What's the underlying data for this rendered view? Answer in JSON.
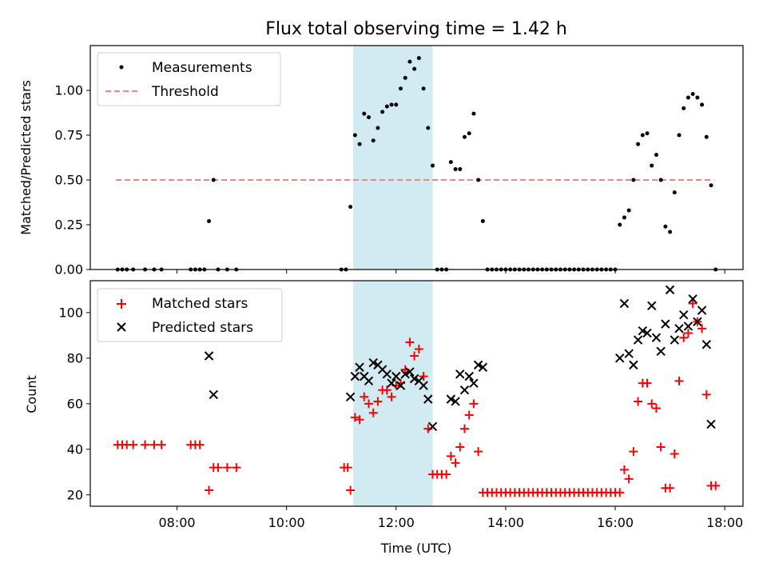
{
  "chart_data": [
    {
      "type": "scatter",
      "title": "Flux total observing time = 1.42 h",
      "ylabel": "Matched/Predicted stars",
      "xlabel": "",
      "xlim": [
        "06:25",
        "18:20"
      ],
      "ylim": [
        0,
        1.25
      ],
      "yticks": [
        "0.00",
        "0.25",
        "0.50",
        "0.75",
        "1.00"
      ],
      "legend_position": "upper-left",
      "shaded_region": {
        "x": [
          "11:13",
          "12:40"
        ],
        "color": "#add8e6"
      },
      "threshold": {
        "name": "Threshold",
        "y": 0.5,
        "x": [
          "06:53",
          "17:48"
        ],
        "color": "#ff7f7f"
      },
      "series": [
        {
          "name": "Measurements",
          "color": "#000000",
          "marker": "dot",
          "points": [
            [
              "06:55",
              0
            ],
            [
              "07:00",
              0
            ],
            [
              "07:05",
              0
            ],
            [
              "07:12",
              0
            ],
            [
              "07:25",
              0
            ],
            [
              "07:35",
              0
            ],
            [
              "07:43",
              0
            ],
            [
              "08:15",
              0
            ],
            [
              "08:20",
              0
            ],
            [
              "08:25",
              0
            ],
            [
              "08:30",
              0
            ],
            [
              "08:35",
              0.27
            ],
            [
              "08:40",
              0.5
            ],
            [
              "08:45",
              0
            ],
            [
              "08:55",
              0
            ],
            [
              "09:05",
              0
            ],
            [
              "11:00",
              0
            ],
            [
              "11:05",
              0
            ],
            [
              "11:10",
              0.35
            ],
            [
              "11:15",
              0.75
            ],
            [
              "11:20",
              0.7
            ],
            [
              "11:25",
              0.87
            ],
            [
              "11:30",
              0.85
            ],
            [
              "11:35",
              0.72
            ],
            [
              "11:40",
              0.79
            ],
            [
              "11:45",
              0.88
            ],
            [
              "11:50",
              0.91
            ],
            [
              "11:55",
              0.92
            ],
            [
              "12:00",
              0.92
            ],
            [
              "12:05",
              1.01
            ],
            [
              "12:10",
              1.07
            ],
            [
              "12:15",
              1.16
            ],
            [
              "12:20",
              1.12
            ],
            [
              "12:25",
              1.18
            ],
            [
              "12:30",
              1.01
            ],
            [
              "12:35",
              0.79
            ],
            [
              "12:40",
              0.58
            ],
            [
              "12:45",
              0
            ],
            [
              "12:50",
              0
            ],
            [
              "12:55",
              0
            ],
            [
              "13:00",
              0.6
            ],
            [
              "13:05",
              0.56
            ],
            [
              "13:10",
              0.56
            ],
            [
              "13:15",
              0.74
            ],
            [
              "13:20",
              0.76
            ],
            [
              "13:25",
              0.87
            ],
            [
              "13:30",
              0.5
            ],
            [
              "13:35",
              0.27
            ],
            [
              "13:40",
              0
            ],
            [
              "13:45",
              0
            ],
            [
              "13:50",
              0
            ],
            [
              "13:55",
              0
            ],
            [
              "14:00",
              0
            ],
            [
              "14:05",
              0
            ],
            [
              "14:10",
              0
            ],
            [
              "14:15",
              0
            ],
            [
              "14:20",
              0
            ],
            [
              "14:25",
              0
            ],
            [
              "14:30",
              0
            ],
            [
              "14:35",
              0
            ],
            [
              "14:40",
              0
            ],
            [
              "14:45",
              0
            ],
            [
              "14:50",
              0
            ],
            [
              "14:55",
              0
            ],
            [
              "15:00",
              0
            ],
            [
              "15:05",
              0
            ],
            [
              "15:10",
              0
            ],
            [
              "15:15",
              0
            ],
            [
              "15:20",
              0
            ],
            [
              "15:25",
              0
            ],
            [
              "15:30",
              0
            ],
            [
              "15:35",
              0
            ],
            [
              "15:40",
              0
            ],
            [
              "15:45",
              0
            ],
            [
              "15:50",
              0
            ],
            [
              "15:55",
              0
            ],
            [
              "16:00",
              0
            ],
            [
              "16:05",
              0.25
            ],
            [
              "16:10",
              0.29
            ],
            [
              "16:15",
              0.33
            ],
            [
              "16:20",
              0.5
            ],
            [
              "16:25",
              0.7
            ],
            [
              "16:30",
              0.75
            ],
            [
              "16:35",
              0.76
            ],
            [
              "16:40",
              0.58
            ],
            [
              "16:45",
              0.64
            ],
            [
              "16:50",
              0.5
            ],
            [
              "16:55",
              0.24
            ],
            [
              "17:00",
              0.21
            ],
            [
              "17:05",
              0.43
            ],
            [
              "17:10",
              0.75
            ],
            [
              "17:15",
              0.9
            ],
            [
              "17:20",
              0.96
            ],
            [
              "17:25",
              0.98
            ],
            [
              "17:30",
              0.96
            ],
            [
              "17:35",
              0.92
            ],
            [
              "17:40",
              0.74
            ],
            [
              "17:45",
              0.47
            ],
            [
              "17:50",
              0
            ]
          ]
        }
      ]
    },
    {
      "type": "scatter",
      "title": "",
      "ylabel": "Count",
      "xlabel": "Time (UTC)",
      "xlim": [
        "06:25",
        "18:20"
      ],
      "ylim": [
        15,
        114
      ],
      "xticks": [
        "08:00",
        "10:00",
        "12:00",
        "14:00",
        "16:00",
        "18:00"
      ],
      "yticks": [
        "20",
        "40",
        "60",
        "80",
        "100"
      ],
      "legend_position": "upper-left",
      "shaded_region": {
        "x": [
          "11:13",
          "12:40"
        ],
        "color": "#add8e6"
      },
      "series": [
        {
          "name": "Matched stars",
          "color": "#ff0000",
          "marker": "plus",
          "points": [
            [
              "06:55",
              42
            ],
            [
              "07:00",
              42
            ],
            [
              "07:05",
              42
            ],
            [
              "07:12",
              42
            ],
            [
              "07:25",
              42
            ],
            [
              "07:35",
              42
            ],
            [
              "07:43",
              42
            ],
            [
              "08:15",
              42
            ],
            [
              "08:20",
              42
            ],
            [
              "08:25",
              42
            ],
            [
              "08:35",
              22
            ],
            [
              "08:40",
              32
            ],
            [
              "08:45",
              32
            ],
            [
              "08:55",
              32
            ],
            [
              "09:05",
              32
            ],
            [
              "11:03",
              32
            ],
            [
              "11:07",
              32
            ],
            [
              "11:10",
              22
            ],
            [
              "11:15",
              54
            ],
            [
              "11:20",
              53
            ],
            [
              "11:25",
              63
            ],
            [
              "11:30",
              60
            ],
            [
              "11:35",
              56
            ],
            [
              "11:40",
              61
            ],
            [
              "11:45",
              66
            ],
            [
              "11:50",
              66
            ],
            [
              "11:55",
              63
            ],
            [
              "12:00",
              68
            ],
            [
              "12:05",
              69
            ],
            [
              "12:10",
              75
            ],
            [
              "12:15",
              87
            ],
            [
              "12:20",
              81
            ],
            [
              "12:25",
              84
            ],
            [
              "12:30",
              72
            ],
            [
              "12:35",
              49
            ],
            [
              "12:40",
              29
            ],
            [
              "12:45",
              29
            ],
            [
              "12:50",
              29
            ],
            [
              "12:55",
              29
            ],
            [
              "13:00",
              37
            ],
            [
              "13:05",
              34
            ],
            [
              "13:10",
              41
            ],
            [
              "13:15",
              49
            ],
            [
              "13:20",
              55
            ],
            [
              "13:25",
              60
            ],
            [
              "13:30",
              39
            ],
            [
              "13:35",
              21
            ],
            [
              "13:40",
              21
            ],
            [
              "13:45",
              21
            ],
            [
              "13:50",
              21
            ],
            [
              "13:55",
              21
            ],
            [
              "14:00",
              21
            ],
            [
              "14:05",
              21
            ],
            [
              "14:10",
              21
            ],
            [
              "14:15",
              21
            ],
            [
              "14:20",
              21
            ],
            [
              "14:25",
              21
            ],
            [
              "14:30",
              21
            ],
            [
              "14:35",
              21
            ],
            [
              "14:40",
              21
            ],
            [
              "14:45",
              21
            ],
            [
              "14:50",
              21
            ],
            [
              "14:55",
              21
            ],
            [
              "15:00",
              21
            ],
            [
              "15:05",
              21
            ],
            [
              "15:10",
              21
            ],
            [
              "15:15",
              21
            ],
            [
              "15:20",
              21
            ],
            [
              "15:25",
              21
            ],
            [
              "15:30",
              21
            ],
            [
              "15:35",
              21
            ],
            [
              "15:40",
              21
            ],
            [
              "15:45",
              21
            ],
            [
              "15:50",
              21
            ],
            [
              "15:55",
              21
            ],
            [
              "16:00",
              21
            ],
            [
              "16:05",
              21
            ],
            [
              "16:10",
              31
            ],
            [
              "16:15",
              27
            ],
            [
              "16:20",
              39
            ],
            [
              "16:25",
              61
            ],
            [
              "16:30",
              69
            ],
            [
              "16:35",
              69
            ],
            [
              "16:40",
              60
            ],
            [
              "16:45",
              58
            ],
            [
              "16:50",
              41
            ],
            [
              "16:55",
              23
            ],
            [
              "17:00",
              23
            ],
            [
              "17:05",
              38
            ],
            [
              "17:10",
              70
            ],
            [
              "17:15",
              89
            ],
            [
              "17:20",
              91
            ],
            [
              "17:25",
              104
            ],
            [
              "17:30",
              96
            ],
            [
              "17:35",
              93
            ],
            [
              "17:40",
              64
            ],
            [
              "17:45",
              24
            ],
            [
              "17:50",
              24
            ]
          ]
        },
        {
          "name": "Predicted stars",
          "color": "#000000",
          "marker": "x",
          "points": [
            [
              "08:35",
              81
            ],
            [
              "08:40",
              64
            ],
            [
              "11:10",
              63
            ],
            [
              "11:15",
              72
            ],
            [
              "11:20",
              76
            ],
            [
              "11:25",
              72
            ],
            [
              "11:30",
              70
            ],
            [
              "11:35",
              78
            ],
            [
              "11:40",
              77
            ],
            [
              "11:45",
              75
            ],
            [
              "11:50",
              73
            ],
            [
              "11:55",
              69
            ],
            [
              "12:00",
              72
            ],
            [
              "12:05",
              68
            ],
            [
              "12:10",
              73
            ],
            [
              "12:15",
              74
            ],
            [
              "12:20",
              71
            ],
            [
              "12:25",
              70
            ],
            [
              "12:30",
              68
            ],
            [
              "12:35",
              62
            ],
            [
              "12:40",
              50
            ],
            [
              "13:00",
              62
            ],
            [
              "13:05",
              61
            ],
            [
              "13:10",
              73
            ],
            [
              "13:15",
              66
            ],
            [
              "13:20",
              72
            ],
            [
              "13:25",
              69
            ],
            [
              "13:30",
              77
            ],
            [
              "13:35",
              76
            ],
            [
              "16:05",
              80
            ],
            [
              "16:10",
              104
            ],
            [
              "16:15",
              82
            ],
            [
              "16:20",
              77
            ],
            [
              "16:25",
              88
            ],
            [
              "16:30",
              92
            ],
            [
              "16:35",
              91
            ],
            [
              "16:40",
              103
            ],
            [
              "16:45",
              89
            ],
            [
              "16:50",
              83
            ],
            [
              "16:55",
              95
            ],
            [
              "17:00",
              110
            ],
            [
              "17:05",
              88
            ],
            [
              "17:10",
              93
            ],
            [
              "17:15",
              99
            ],
            [
              "17:20",
              94
            ],
            [
              "17:25",
              106
            ],
            [
              "17:30",
              96
            ],
            [
              "17:35",
              101
            ],
            [
              "17:40",
              86
            ],
            [
              "17:45",
              51
            ]
          ]
        }
      ]
    }
  ]
}
